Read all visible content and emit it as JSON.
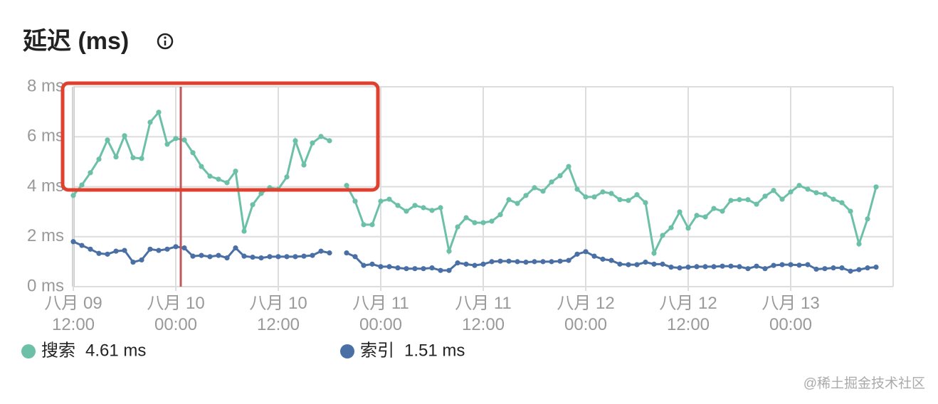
{
  "chart_data": {
    "type": "line",
    "title": "延迟 (ms)",
    "x": [
      "八月 09 12:00",
      "八月 09 13:00",
      "八月 09 14:00",
      "八月 09 15:00",
      "八月 09 16:00",
      "八月 09 17:00",
      "八月 09 18:00",
      "八月 09 19:00",
      "八月 09 20:00",
      "八月 09 21:00",
      "八月 09 22:00",
      "八月 09 23:00",
      "八月 10 00:00",
      "八月 10 01:00",
      "八月 10 02:00",
      "八月 10 03:00",
      "八月 10 04:00",
      "八月 10 05:00",
      "八月 10 06:00",
      "八月 10 07:00",
      "八月 10 08:00",
      "八月 10 09:00",
      "八月 10 10:00",
      "八月 10 11:00",
      "八月 10 12:00",
      "八月 10 13:00",
      "八月 10 14:00",
      "八月 10 15:00",
      "八月 10 16:00",
      "八月 10 17:00",
      "八月 10 18:00",
      "八月 10 19:00",
      "八月 10 20:00",
      "八月 10 21:00",
      "八月 10 22:00",
      "八月 10 23:00",
      "八月 11 00:00",
      "八月 11 01:00",
      "八月 11 02:00",
      "八月 11 03:00",
      "八月 11 04:00",
      "八月 11 05:00",
      "八月 11 06:00",
      "八月 11 07:00",
      "八月 11 08:00",
      "八月 11 09:00",
      "八月 11 10:00",
      "八月 11 11:00",
      "八月 11 12:00",
      "八月 11 13:00",
      "八月 11 14:00",
      "八月 11 15:00",
      "八月 11 16:00",
      "八月 11 17:00",
      "八月 11 18:00",
      "八月 11 19:00",
      "八月 11 20:00",
      "八月 11 21:00",
      "八月 11 22:00",
      "八月 11 23:00",
      "八月 12 00:00",
      "八月 12 01:00",
      "八月 12 02:00",
      "八月 12 03:00",
      "八月 12 04:00",
      "八月 12 05:00",
      "八月 12 06:00",
      "八月 12 07:00",
      "八月 12 08:00",
      "八月 12 09:00",
      "八月 12 10:00",
      "八月 12 11:00",
      "八月 12 12:00",
      "八月 12 13:00",
      "八月 12 14:00",
      "八月 12 15:00",
      "八月 12 16:00",
      "八月 12 17:00",
      "八月 12 18:00",
      "八月 12 19:00",
      "八月 12 20:00",
      "八月 12 21:00",
      "八月 12 22:00",
      "八月 12 23:00",
      "八月 13 00:00",
      "八月 13 01:00",
      "八月 13 02:00",
      "八月 13 03:00",
      "八月 13 04:00",
      "八月 13 05:00",
      "八月 13 06:00",
      "八月 13 07:00",
      "八月 13 08:00",
      "八月 13 09:00",
      "八月 13 10:00"
    ],
    "series": [
      {
        "name": "搜索",
        "color": "#6cc0a8",
        "summary": "4.61 ms",
        "values": [
          3.65,
          4.07,
          4.56,
          5.1,
          5.87,
          5.19,
          6.04,
          5.16,
          5.13,
          6.58,
          6.98,
          5.7,
          5.93,
          5.87,
          5.36,
          4.81,
          4.42,
          4.3,
          4.16,
          4.62,
          2.22,
          3.28,
          3.73,
          3.96,
          3.9,
          4.39,
          5.84,
          4.87,
          5.75,
          6.01,
          5.84,
          null,
          4.05,
          3.42,
          2.48,
          2.48,
          3.42,
          3.5,
          3.25,
          3.02,
          3.25,
          3.16,
          3.05,
          3.16,
          1.42,
          2.39,
          2.76,
          2.56,
          2.56,
          2.62,
          2.88,
          3.48,
          3.33,
          3.65,
          3.96,
          3.82,
          4.19,
          4.44,
          4.81,
          3.9,
          3.59,
          3.59,
          3.79,
          3.73,
          3.48,
          3.45,
          3.68,
          3.36,
          1.34,
          2.05,
          2.36,
          2.99,
          2.34,
          2.85,
          2.79,
          3.13,
          3.02,
          3.45,
          3.48,
          3.48,
          3.3,
          3.62,
          3.85,
          3.5,
          3.79,
          4.05,
          3.9,
          3.76,
          3.7,
          3.5,
          3.36,
          3.02,
          1.71,
          2.71,
          3.99
        ]
      },
      {
        "name": "索引",
        "color": "#4a6fa5",
        "summary": "1.51 ms",
        "values": [
          1.8,
          1.65,
          1.5,
          1.33,
          1.3,
          1.42,
          1.45,
          0.98,
          1.07,
          1.5,
          1.45,
          1.5,
          1.6,
          1.55,
          1.22,
          1.25,
          1.2,
          1.25,
          1.15,
          1.55,
          1.22,
          1.18,
          1.15,
          1.2,
          1.2,
          1.2,
          1.2,
          1.22,
          1.25,
          1.42,
          1.35,
          null,
          1.35,
          1.2,
          0.85,
          0.9,
          0.8,
          0.8,
          0.75,
          0.72,
          0.72,
          0.72,
          0.75,
          0.65,
          0.65,
          0.95,
          0.9,
          0.85,
          0.9,
          1.0,
          1.02,
          1.02,
          1.0,
          0.98,
          1.0,
          1.0,
          1.0,
          1.02,
          1.05,
          1.3,
          1.4,
          1.22,
          1.1,
          1.05,
          0.9,
          0.88,
          0.88,
          0.98,
          0.9,
          0.9,
          0.78,
          0.75,
          0.78,
          0.8,
          0.8,
          0.8,
          0.82,
          0.82,
          0.8,
          0.72,
          0.82,
          0.72,
          0.85,
          0.88,
          0.88,
          0.86,
          0.88,
          0.7,
          0.72,
          0.75,
          0.75,
          0.62,
          0.68,
          0.75,
          0.78
        ]
      }
    ],
    "xlim": [
      "八月 09 12:00",
      "八月 13 12:00"
    ],
    "xticks": [
      "八月 09 12:00",
      "八月 10 00:00",
      "八月 10 12:00",
      "八月 11 00:00",
      "八月 11 12:00",
      "八月 12 00:00",
      "八月 12 12:00",
      "八月 13 00:00"
    ],
    "ylim": [
      0,
      8
    ],
    "yticks": [
      {
        "value": 0,
        "label": "0 ms"
      },
      {
        "value": 2,
        "label": "2 ms"
      },
      {
        "value": 4,
        "label": "4 ms"
      },
      {
        "value": 6,
        "label": "6 ms"
      },
      {
        "value": 8,
        "label": "8 ms"
      }
    ],
    "grid": true,
    "watermark": "@稀土掘金技术社区"
  }
}
